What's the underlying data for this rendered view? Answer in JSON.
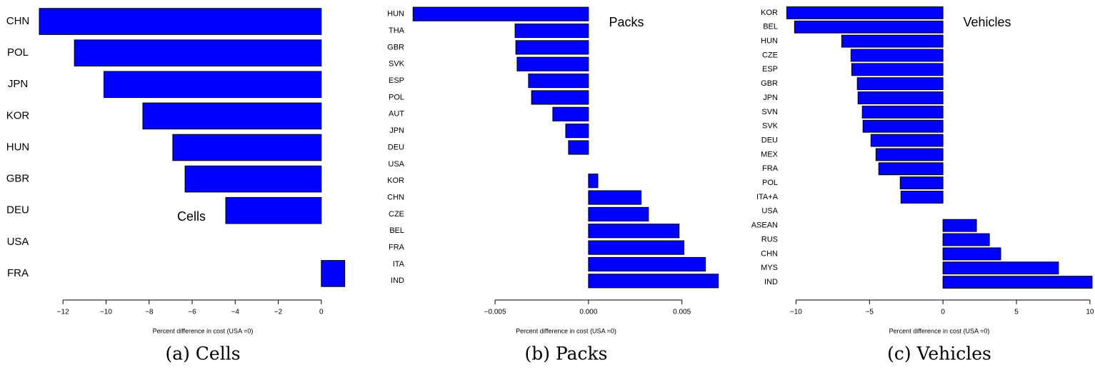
{
  "chart_data": [
    {
      "type": "barh",
      "title": "Cells",
      "caption": "(a) Cells",
      "xlabel": "Percent difference in cost (USA =0)",
      "color": "#0000ff",
      "categories": [
        "CHN",
        "POL",
        "JPN",
        "KOR",
        "HUN",
        "GBR",
        "DEU",
        "USA",
        "FRA"
      ],
      "values": [
        -13.1,
        -11.47,
        -10.1,
        -8.29,
        -6.9,
        -6.33,
        -4.44,
        0,
        1.09
      ],
      "xlim": [
        -13.2,
        1.2
      ],
      "xticks": [
        {
          "value": -12,
          "label": "−12"
        },
        {
          "value": -10,
          "label": "−10"
        },
        {
          "value": -8,
          "label": "−8"
        },
        {
          "value": -6,
          "label": "−6"
        },
        {
          "value": -4,
          "label": "−4"
        },
        {
          "value": -2,
          "label": "−2"
        },
        0
      ]
    },
    {
      "type": "barh",
      "title": "Packs",
      "caption": "(b) Packs",
      "xlabel": "Percent difference in cost (USA =0)",
      "color": "#0000ff",
      "categories": [
        "HUN",
        "THA",
        "GBR",
        "SVK",
        "ESP",
        "POL",
        "AUT",
        "JPN",
        "DEU",
        "USA",
        "KOR",
        "CHN",
        "CZE",
        "BEL",
        "FRA",
        "ITA",
        "IND"
      ],
      "values": [
        -0.00939,
        -0.00393,
        -0.00389,
        -0.00382,
        -0.00321,
        -0.00305,
        -0.00191,
        -0.00122,
        -0.00107,
        0,
        0.0005,
        0.00282,
        0.00321,
        0.00485,
        0.00511,
        0.00626,
        0.00695
      ],
      "xlim": [
        -0.0094,
        0.007
      ],
      "xticks": [
        {
          "value": -0.005,
          "label": "−0.005"
        },
        {
          "value": 0,
          "label": "0.000"
        },
        0.005
      ]
    },
    {
      "type": "barh",
      "title": "Vehicles",
      "caption": "(c) Vehicles",
      "xlabel": "Percent difference in cost (USA =0)",
      "color": "#0000ff",
      "categories": [
        "KOR",
        "BEL",
        "HUN",
        "CZE",
        "ESP",
        "GBR",
        "JPN",
        "SVN",
        "SVK",
        "DEU",
        "MEX",
        "FRA",
        "POL",
        "ITA+A",
        "USA",
        "ASEAN",
        "RUS",
        "CHN",
        "MYS",
        "IND"
      ],
      "values": [
        -10.63,
        -10.1,
        -6.89,
        -6.26,
        -6.21,
        -5.83,
        -5.78,
        -5.49,
        -5.44,
        -4.9,
        -4.56,
        -4.37,
        -2.91,
        -2.86,
        0,
        2.28,
        3.16,
        3.93,
        7.86,
        10.15
      ],
      "xlim": [
        -10.7,
        10.2
      ],
      "xticks": [
        {
          "value": -10,
          "label": "−10"
        },
        {
          "value": -5,
          "label": "−5"
        },
        0,
        5,
        10
      ]
    }
  ]
}
